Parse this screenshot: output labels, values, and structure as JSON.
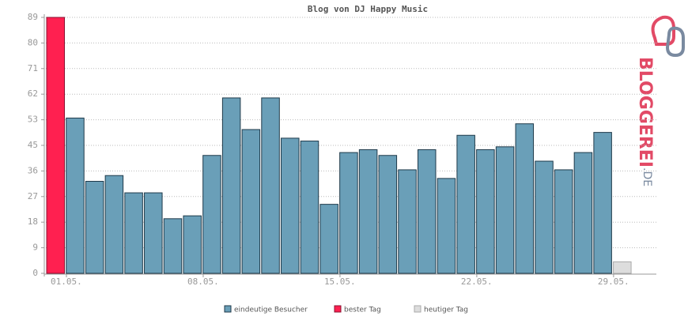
{
  "chart_data": {
    "type": "bar",
    "title": "Blog von DJ Happy Music",
    "categories": [
      "01.05.",
      null,
      null,
      null,
      null,
      null,
      null,
      "08.05.",
      null,
      null,
      null,
      null,
      null,
      null,
      "15.05.",
      null,
      null,
      null,
      null,
      null,
      null,
      "22.05.",
      null,
      null,
      null,
      null,
      null,
      null,
      "29.05.",
      null,
      null
    ],
    "series": [
      {
        "name": "eindeutige Besucher",
        "color": "#6a9fb8",
        "stroke": "#1f3a4a",
        "values": [
          null,
          54,
          32,
          34,
          28,
          28,
          19,
          20,
          41,
          61,
          50,
          61,
          47,
          46,
          24,
          42,
          43,
          41,
          36,
          43,
          33,
          48,
          43,
          44,
          52,
          39,
          36,
          42,
          49,
          null,
          null
        ]
      },
      {
        "name": "bester Tag",
        "color": "#ff2050",
        "stroke": "#8a1030",
        "values": [
          89,
          null,
          null,
          null,
          null,
          null,
          null,
          null,
          null,
          null,
          null,
          null,
          null,
          null,
          null,
          null,
          null,
          null,
          null,
          null,
          null,
          null,
          null,
          null,
          null,
          null,
          null,
          null,
          null,
          null,
          null
        ]
      },
      {
        "name": "heutiger Tag",
        "color": "#dddddd",
        "stroke": "#aaaaaa",
        "values": [
          null,
          null,
          null,
          null,
          null,
          null,
          null,
          null,
          null,
          null,
          null,
          null,
          null,
          null,
          null,
          null,
          null,
          null,
          null,
          null,
          null,
          null,
          null,
          null,
          null,
          null,
          null,
          null,
          null,
          4,
          null
        ]
      }
    ],
    "ylim": [
      0,
      89
    ],
    "yticks": [
      0,
      {
        "value": 8.9,
        "label": "9"
      },
      {
        "value": 17.8,
        "label": "18"
      },
      {
        "value": 26.7,
        "label": "27"
      },
      {
        "value": 35.6,
        "label": "36"
      },
      {
        "value": 44.5,
        "label": "45"
      },
      {
        "value": 53.4,
        "label": "53"
      },
      {
        "value": 62.3,
        "label": "62"
      },
      {
        "value": 71.2,
        "label": "71"
      },
      {
        "value": 80.1,
        "label": "80"
      },
      89
    ],
    "grid": true
  },
  "logo": {
    "text": "BLOGGEREI",
    "suffix": ".DE"
  }
}
